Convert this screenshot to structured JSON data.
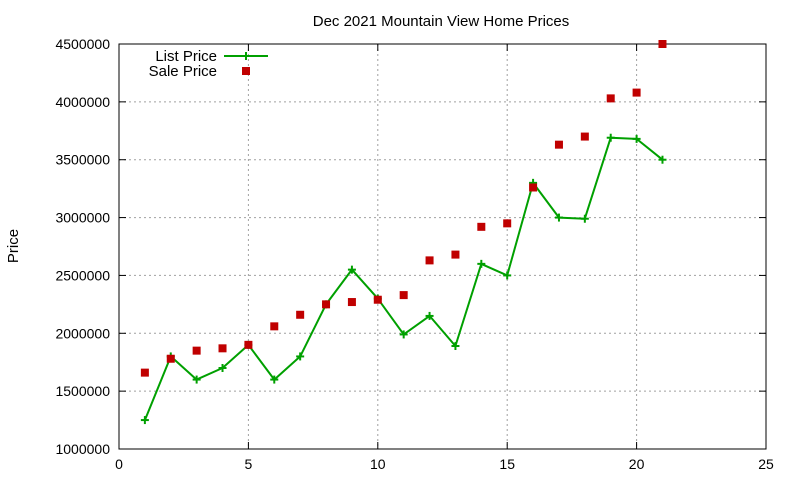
{
  "chart_data": {
    "type": "line",
    "title": "Dec 2021 Mountain View Home Prices",
    "xlabel": "",
    "ylabel": "Price",
    "xlim": [
      0,
      25
    ],
    "ylim": [
      1000000,
      4500000
    ],
    "xticks": [
      0,
      5,
      10,
      15,
      20,
      25
    ],
    "yticks": [
      1000000,
      1500000,
      2000000,
      2500000,
      3000000,
      3500000,
      4000000,
      4500000
    ],
    "grid": true,
    "legend_position": "top-left",
    "series": [
      {
        "name": "List Price",
        "style": "line-points",
        "marker": "plus",
        "color": "#00a000",
        "x": [
          1,
          2,
          3,
          4,
          5,
          6,
          7,
          8,
          9,
          10,
          11,
          12,
          13,
          14,
          15,
          16,
          17,
          18,
          19,
          20,
          21
        ],
        "y": [
          1250000,
          1800000,
          1600000,
          1700000,
          1900000,
          1600000,
          1800000,
          2250000,
          2550000,
          2300000,
          1990000,
          2150000,
          1890000,
          2600000,
          2500000,
          3300000,
          3000000,
          2990000,
          3690000,
          3680000,
          3500000
        ]
      },
      {
        "name": "Sale Price",
        "style": "points",
        "marker": "square",
        "color": "#c00000",
        "x": [
          1,
          2,
          3,
          4,
          5,
          6,
          7,
          8,
          9,
          10,
          11,
          12,
          13,
          14,
          15,
          16,
          17,
          18,
          19,
          20,
          21
        ],
        "y": [
          1660000,
          1780000,
          1850000,
          1870000,
          1900000,
          2060000,
          2160000,
          2250000,
          2270000,
          2290000,
          2330000,
          2630000,
          2680000,
          2920000,
          2950000,
          3260000,
          3630000,
          3700000,
          4030000,
          4080000,
          4500000
        ]
      }
    ]
  }
}
